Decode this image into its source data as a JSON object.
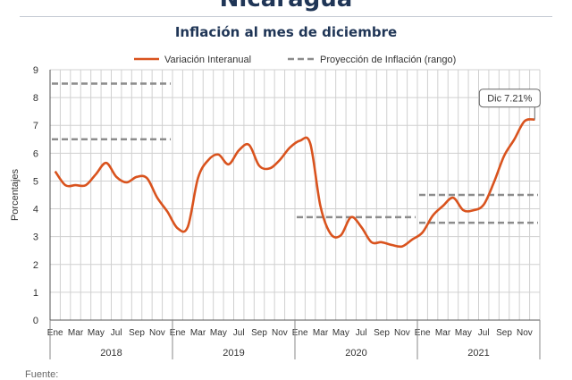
{
  "header": {
    "country": "Nicaragua",
    "chart_title": "Inflación al mes de diciembre"
  },
  "footer": {
    "source_label": "Fuente:"
  },
  "colors": {
    "series_line": "#d9531e",
    "projection": "#8c8c8c",
    "grid": "#d0d0d0",
    "title": "#1f3556"
  },
  "chart_data": {
    "type": "line",
    "title": "Inflación al mes de diciembre",
    "ylabel": "Porcentajes",
    "xlabel": "",
    "ylim": [
      0,
      9
    ],
    "yticks": [
      0,
      1,
      2,
      3,
      4,
      5,
      6,
      7,
      8,
      9
    ],
    "grid": true,
    "legend_position": "top",
    "month_tick_labels": [
      "Ene",
      "Mar",
      "May",
      "Jul",
      "Sep",
      "Nov"
    ],
    "years": [
      "2018",
      "2019",
      "2020",
      "2021"
    ],
    "x": [
      "2018-01",
      "2018-02",
      "2018-03",
      "2018-04",
      "2018-05",
      "2018-06",
      "2018-07",
      "2018-08",
      "2018-09",
      "2018-10",
      "2018-11",
      "2018-12",
      "2019-01",
      "2019-02",
      "2019-03",
      "2019-04",
      "2019-05",
      "2019-06",
      "2019-07",
      "2019-08",
      "2019-09",
      "2019-10",
      "2019-11",
      "2019-12",
      "2020-01",
      "2020-02",
      "2020-03",
      "2020-04",
      "2020-05",
      "2020-06",
      "2020-07",
      "2020-08",
      "2020-09",
      "2020-10",
      "2020-11",
      "2020-12",
      "2021-01",
      "2021-02",
      "2021-03",
      "2021-04",
      "2021-05",
      "2021-06",
      "2021-07",
      "2021-08",
      "2021-09",
      "2021-10",
      "2021-11",
      "2021-12"
    ],
    "series": [
      {
        "name": "Variación Interanual",
        "values": [
          5.35,
          4.85,
          4.85,
          4.85,
          5.25,
          5.65,
          5.15,
          4.95,
          5.15,
          5.1,
          4.4,
          3.9,
          3.3,
          3.35,
          5.1,
          5.75,
          5.95,
          5.6,
          6.1,
          6.3,
          5.55,
          5.45,
          5.75,
          6.2,
          6.45,
          6.35,
          4.1,
          3.1,
          3.05,
          3.7,
          3.35,
          2.8,
          2.8,
          2.7,
          2.65,
          2.9,
          3.15,
          3.75,
          4.1,
          4.4,
          3.95,
          3.95,
          4.15,
          4.95,
          5.9,
          6.5,
          7.15,
          7.21
        ]
      },
      {
        "name": "Proyección de Inflación (rango)",
        "ranges": [
          {
            "year": "2018",
            "low": 6.5,
            "high": 8.5
          },
          {
            "year": "2020",
            "low": 3.7,
            "high": 3.7
          },
          {
            "year": "2021",
            "low": 3.5,
            "high": 4.5
          }
        ]
      }
    ],
    "annotations": [
      {
        "label": "Dic 7.21%",
        "x": "2021-12",
        "y": 7.21
      }
    ]
  }
}
